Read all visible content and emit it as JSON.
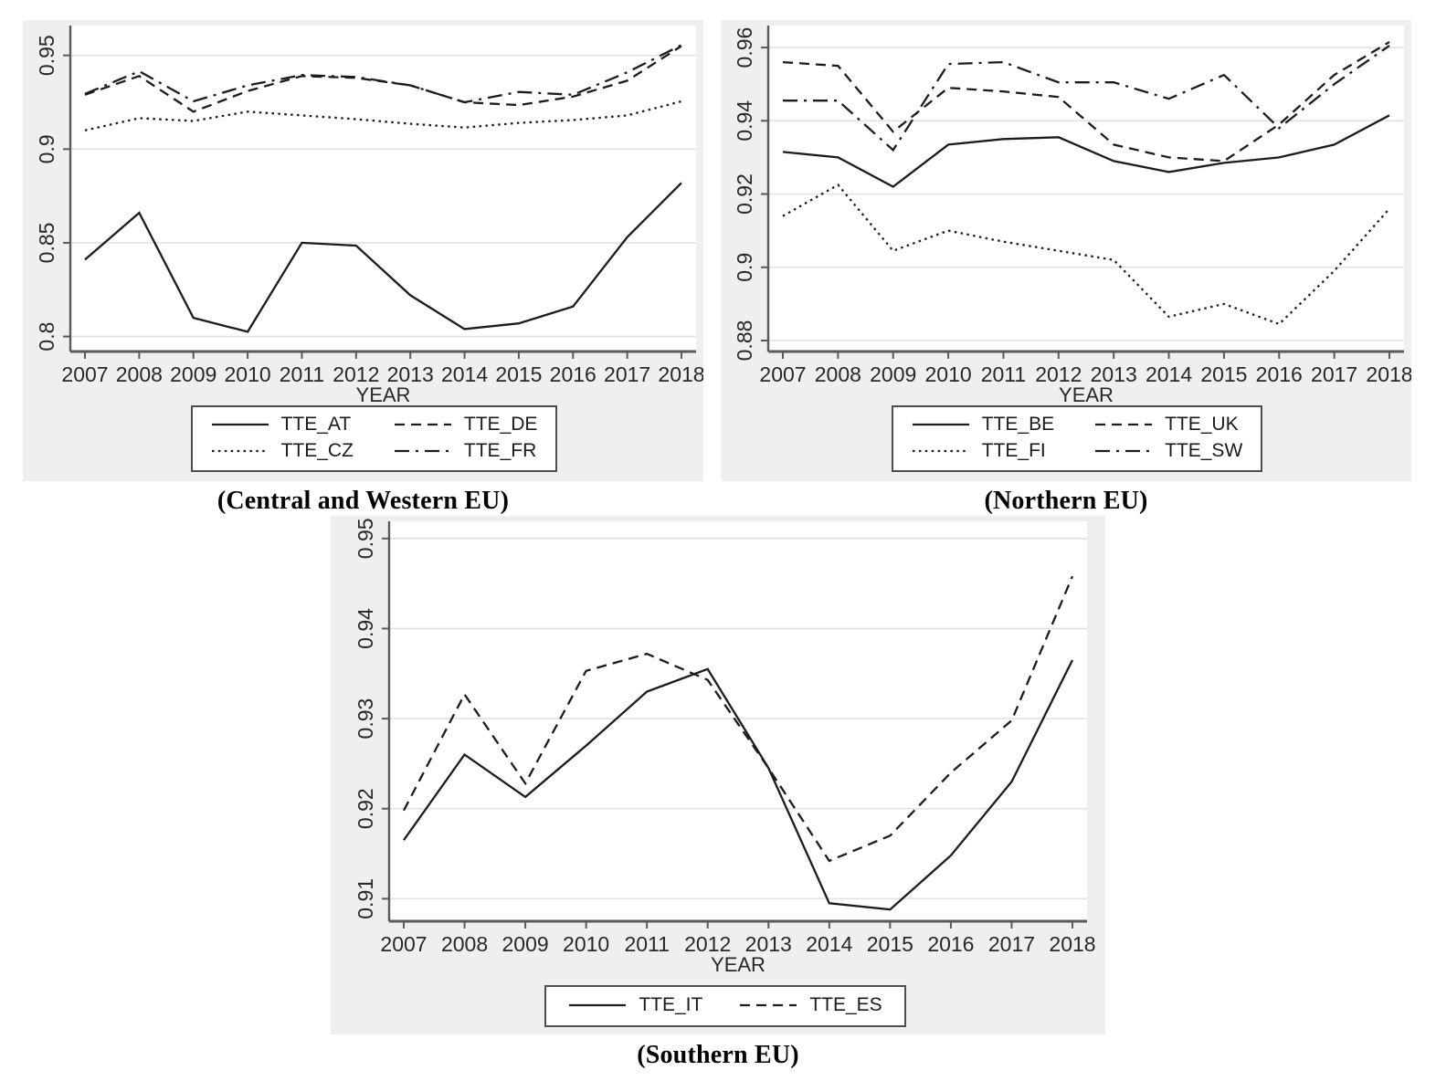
{
  "colors": {
    "page_background": "#ffffff",
    "panel_background": "#efefef",
    "plot_background": "#ffffff",
    "grid": "#e2e2e2",
    "axis": "#5a5a5a",
    "line": "#1c1c1c",
    "text": "#282828"
  },
  "chart_data": [
    {
      "panel": "central-western-eu",
      "caption": "(Central and Western EU)",
      "type": "line",
      "title": "",
      "xlabel": "YEAR",
      "ylabel": "",
      "x": [
        "2007",
        "2008",
        "2009",
        "2010",
        "2011",
        "2012",
        "2013",
        "2014",
        "2015",
        "2016",
        "2017",
        "2018"
      ],
      "ylim": [
        0.792,
        0.963
      ],
      "yticks": {
        "values": [
          0.8,
          0.85,
          0.9,
          0.95
        ],
        "labels": [
          "0.8",
          "0.85",
          "0.9",
          "0.95"
        ]
      },
      "grid": true,
      "legend_position": "below-center",
      "legend_columns": 2,
      "series": [
        {
          "name": "TTE_AT",
          "line_style": "solid",
          "values": [
            0.841,
            0.866,
            0.81,
            0.8025,
            0.85,
            0.8485,
            0.822,
            0.804,
            0.807,
            0.816,
            0.853,
            0.882
          ]
        },
        {
          "name": "TTE_DE",
          "line_style": "dashed",
          "values": [
            0.929,
            0.939,
            0.92,
            0.931,
            0.939,
            0.938,
            0.934,
            0.925,
            0.9235,
            0.928,
            0.9365,
            0.955
          ]
        },
        {
          "name": "TTE_CZ",
          "line_style": "dotted",
          "values": [
            0.91,
            0.9165,
            0.915,
            0.92,
            0.918,
            0.916,
            0.9135,
            0.9115,
            0.914,
            0.9155,
            0.918,
            0.9255
          ]
        },
        {
          "name": "TTE_FR",
          "line_style": "dashdot",
          "values": [
            0.9295,
            0.9415,
            0.9255,
            0.934,
            0.9395,
            0.9385,
            0.934,
            0.925,
            0.9305,
            0.929,
            0.941,
            0.9555
          ]
        }
      ]
    },
    {
      "panel": "northern-eu",
      "caption": "(Northern EU)",
      "type": "line",
      "title": "",
      "xlabel": "YEAR",
      "ylabel": "",
      "x": [
        "2007",
        "2008",
        "2009",
        "2010",
        "2011",
        "2012",
        "2013",
        "2014",
        "2015",
        "2016",
        "2017",
        "2018"
      ],
      "ylim": [
        0.877,
        0.9645
      ],
      "yticks": {
        "values": [
          0.88,
          0.9,
          0.92,
          0.94,
          0.96
        ],
        "labels": [
          "0.88",
          "0.9",
          "0.92",
          "0.94",
          "0.96"
        ]
      },
      "grid": true,
      "legend_position": "below-center",
      "legend_columns": 2,
      "series": [
        {
          "name": "TTE_BE",
          "line_style": "solid",
          "values": [
            0.9315,
            0.93,
            0.922,
            0.9335,
            0.935,
            0.9355,
            0.929,
            0.926,
            0.9285,
            0.93,
            0.9335,
            0.9415
          ]
        },
        {
          "name": "TTE_UK",
          "line_style": "dashed",
          "values": [
            0.956,
            0.955,
            0.937,
            0.949,
            0.948,
            0.9465,
            0.9335,
            0.93,
            0.929,
            0.939,
            0.9525,
            0.9615
          ]
        },
        {
          "name": "TTE_FI",
          "line_style": "dotted",
          "values": [
            0.914,
            0.9225,
            0.9045,
            0.91,
            0.907,
            0.9045,
            0.902,
            0.8865,
            0.89,
            0.8845,
            0.899,
            0.916
          ]
        },
        {
          "name": "TTE_SW",
          "line_style": "dashdot",
          "values": [
            0.9455,
            0.9455,
            0.932,
            0.9555,
            0.956,
            0.9505,
            0.9505,
            0.946,
            0.9525,
            0.938,
            0.95,
            0.9605
          ]
        }
      ]
    },
    {
      "panel": "southern-eu",
      "caption": "(Southern EU)",
      "type": "line",
      "title": "",
      "xlabel": "YEAR",
      "ylabel": "",
      "x": [
        "2007",
        "2008",
        "2009",
        "2010",
        "2011",
        "2012",
        "2013",
        "2014",
        "2015",
        "2016",
        "2017",
        "2018"
      ],
      "ylim": [
        0.9075,
        0.9513
      ],
      "yticks": {
        "values": [
          0.91,
          0.92,
          0.93,
          0.94,
          0.95
        ],
        "labels": [
          "0.91",
          "0.92",
          "0.93",
          "0.94",
          "0.95"
        ]
      },
      "grid": true,
      "legend_position": "below-center",
      "legend_columns": 2,
      "series": [
        {
          "name": "TTE_IT",
          "line_style": "solid",
          "values": [
            0.9165,
            0.926,
            0.9213,
            0.927,
            0.933,
            0.9355,
            0.9245,
            0.9095,
            0.9088,
            0.9148,
            0.923,
            0.9365
          ]
        },
        {
          "name": "TTE_ES",
          "line_style": "dashed",
          "values": [
            0.9198,
            0.9327,
            0.9228,
            0.9353,
            0.9372,
            0.9343,
            0.9245,
            0.9142,
            0.917,
            0.924,
            0.9298,
            0.9458
          ]
        }
      ]
    }
  ]
}
